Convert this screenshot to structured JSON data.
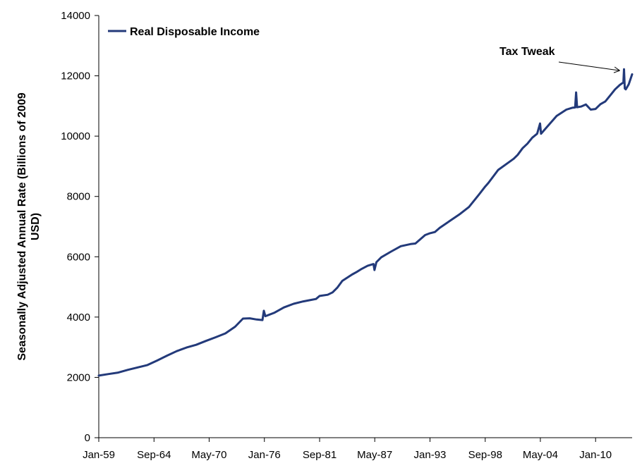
{
  "chart_data": {
    "type": "line",
    "title": "",
    "xlabel": "",
    "ylabel_lines": [
      "Seasonally Adjusted Annual Rate (Billions of 2009",
      "USD)"
    ],
    "ylim": [
      0,
      14000
    ],
    "yticks": [
      0,
      2000,
      4000,
      6000,
      8000,
      10000,
      12000,
      14000
    ],
    "xlim": [
      1959.0,
      2013.75
    ],
    "xticks": [
      {
        "label": "Jan-59",
        "value": 1959.0
      },
      {
        "label": "Sep-64",
        "value": 1964.67
      },
      {
        "label": "May-70",
        "value": 1970.33
      },
      {
        "label": "Jan-76",
        "value": 1976.0
      },
      {
        "label": "Sep-81",
        "value": 1981.67
      },
      {
        "label": "May-87",
        "value": 1987.33
      },
      {
        "label": "Jan-93",
        "value": 1993.0
      },
      {
        "label": "Sep-98",
        "value": 1998.67
      },
      {
        "label": "May-04",
        "value": 2004.33
      },
      {
        "label": "Jan-10",
        "value": 2010.0
      }
    ],
    "grid": false,
    "legend_position": "top-left",
    "series": [
      {
        "name": "Real Disposable Income",
        "color": "#233a7a",
        "points": [
          [
            1959.0,
            2060
          ],
          [
            1960.0,
            2110
          ],
          [
            1961.0,
            2160
          ],
          [
            1962.0,
            2250
          ],
          [
            1963.0,
            2330
          ],
          [
            1964.0,
            2410
          ],
          [
            1965.0,
            2560
          ],
          [
            1966.0,
            2720
          ],
          [
            1967.0,
            2870
          ],
          [
            1968.0,
            2990
          ],
          [
            1969.0,
            3080
          ],
          [
            1970.0,
            3210
          ],
          [
            1971.0,
            3330
          ],
          [
            1972.0,
            3460
          ],
          [
            1973.0,
            3680
          ],
          [
            1973.8,
            3950
          ],
          [
            1974.5,
            3960
          ],
          [
            1975.2,
            3920
          ],
          [
            1975.8,
            3900
          ],
          [
            1975.95,
            4210
          ],
          [
            1976.1,
            4030
          ],
          [
            1977.0,
            4140
          ],
          [
            1978.0,
            4320
          ],
          [
            1979.0,
            4440
          ],
          [
            1980.0,
            4520
          ],
          [
            1980.8,
            4570
          ],
          [
            1981.3,
            4600
          ],
          [
            1981.67,
            4700
          ],
          [
            1982.5,
            4740
          ],
          [
            1983.0,
            4820
          ],
          [
            1983.5,
            4980
          ],
          [
            1984.0,
            5200
          ],
          [
            1985.0,
            5410
          ],
          [
            1985.5,
            5500
          ],
          [
            1986.0,
            5600
          ],
          [
            1986.6,
            5700
          ],
          [
            1987.2,
            5760
          ],
          [
            1987.3,
            5560
          ],
          [
            1987.5,
            5820
          ],
          [
            1988.0,
            5980
          ],
          [
            1989.0,
            6170
          ],
          [
            1990.0,
            6350
          ],
          [
            1991.0,
            6420
          ],
          [
            1991.5,
            6440
          ],
          [
            1992.0,
            6580
          ],
          [
            1992.5,
            6720
          ],
          [
            1993.0,
            6780
          ],
          [
            1993.5,
            6820
          ],
          [
            1994.0,
            6960
          ],
          [
            1995.0,
            7180
          ],
          [
            1996.0,
            7400
          ],
          [
            1997.0,
            7650
          ],
          [
            1998.0,
            8050
          ],
          [
            1998.67,
            8330
          ],
          [
            1999.0,
            8450
          ],
          [
            2000.0,
            8880
          ],
          [
            2001.0,
            9110
          ],
          [
            2001.6,
            9250
          ],
          [
            2002.0,
            9380
          ],
          [
            2002.5,
            9600
          ],
          [
            2003.0,
            9750
          ],
          [
            2003.5,
            9950
          ],
          [
            2004.0,
            10080
          ],
          [
            2004.3,
            10420
          ],
          [
            2004.4,
            10080
          ],
          [
            2005.0,
            10300
          ],
          [
            2006.0,
            10670
          ],
          [
            2007.0,
            10880
          ],
          [
            2007.6,
            10940
          ],
          [
            2007.9,
            10950
          ],
          [
            2008.0,
            11450
          ],
          [
            2008.1,
            10960
          ],
          [
            2008.5,
            10980
          ],
          [
            2009.0,
            11050
          ],
          [
            2009.5,
            10880
          ],
          [
            2010.0,
            10900
          ],
          [
            2010.5,
            11060
          ],
          [
            2011.0,
            11150
          ],
          [
            2011.5,
            11350
          ],
          [
            2012.0,
            11550
          ],
          [
            2012.5,
            11700
          ],
          [
            2012.85,
            11780
          ],
          [
            2012.92,
            12220
          ],
          [
            2013.0,
            11580
          ],
          [
            2013.1,
            11550
          ],
          [
            2013.4,
            11720
          ],
          [
            2013.75,
            12050
          ]
        ]
      }
    ],
    "annotations": [
      {
        "text": "Tax Tweak",
        "x": 2012.92,
        "y": 12220
      }
    ]
  }
}
